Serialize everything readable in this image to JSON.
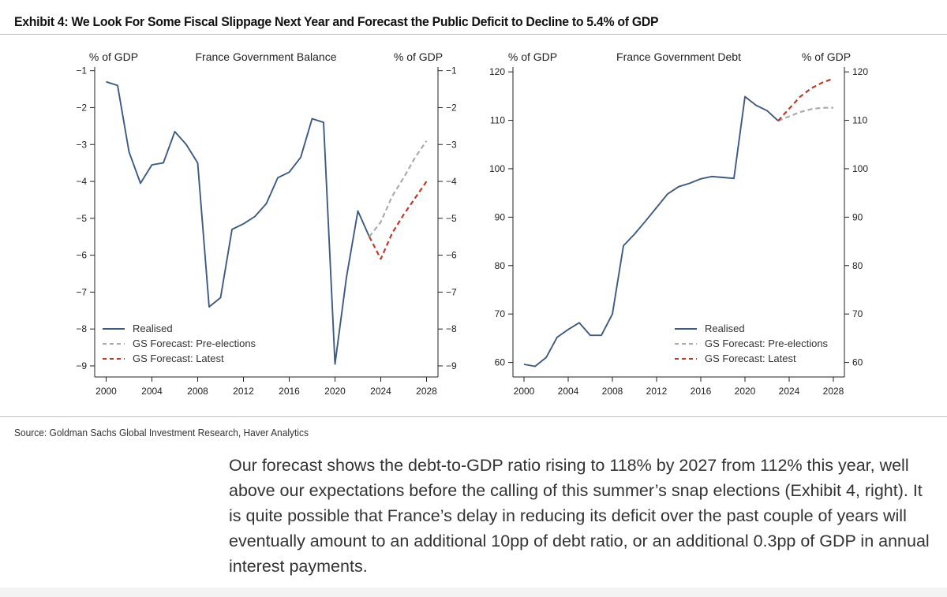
{
  "exhibit": {
    "title": "Exhibit 4: We Look For Some Fiscal Slippage Next Year and Forecast the Public Deficit to Decline to 5.4% of GDP",
    "source": "Source: Goldman Sachs Global Investment Research, Haver Analytics"
  },
  "colors": {
    "realised": "#3d5a80",
    "pre_elections": "#ababab",
    "latest": "#c0392b",
    "axis": "#222222"
  },
  "paragraph": "Our forecast shows the debt-to-GDP ratio rising to 118% by 2027 from 112% this year, well above our expectations before the calling of this summer’s snap elections (Exhibit 4, right). It is quite possible that France’s delay in reducing its deficit over the past couple of years will eventually amount to an additional 10pp of debt ratio, or an additional 0.3pp of GDP in annual interest payments.",
  "chart_data": [
    {
      "type": "line",
      "title": "France Government Balance",
      "ylabel_left": "% of GDP",
      "ylabel_right": "% of GDP",
      "xlim": [
        1999,
        2029
      ],
      "ylim": [
        -9.3,
        -0.9
      ],
      "xticks": [
        2000,
        2004,
        2008,
        2012,
        2016,
        2020,
        2024,
        2028
      ],
      "yticks": [
        -1,
        -2,
        -3,
        -4,
        -5,
        -6,
        -7,
        -8,
        -9
      ],
      "legend_position": "bottom-left",
      "series": [
        {
          "name": "Realised",
          "style": "solid",
          "x": [
            2000,
            2001,
            2002,
            2003,
            2004,
            2005,
            2006,
            2007,
            2008,
            2009,
            2010,
            2011,
            2012,
            2013,
            2014,
            2015,
            2016,
            2017,
            2018,
            2019,
            2020,
            2021,
            2022,
            2023
          ],
          "values": [
            -1.3,
            -1.4,
            -3.2,
            -4.05,
            -3.55,
            -3.5,
            -2.65,
            -3.0,
            -3.5,
            -7.4,
            -7.15,
            -5.3,
            -5.15,
            -4.95,
            -4.6,
            -3.9,
            -3.75,
            -3.35,
            -2.3,
            -2.4,
            -8.95,
            -6.6,
            -4.8,
            -5.5
          ]
        },
        {
          "name": "GS Forecast: Pre-elections",
          "style": "dashed",
          "x": [
            2023,
            2024,
            2025,
            2026,
            2027,
            2028
          ],
          "values": [
            -5.5,
            -5.1,
            -4.4,
            -3.9,
            -3.35,
            -2.9
          ]
        },
        {
          "name": "GS Forecast: Latest",
          "style": "dashed",
          "x": [
            2023,
            2024,
            2025,
            2026,
            2027,
            2028
          ],
          "values": [
            -5.5,
            -6.1,
            -5.4,
            -4.9,
            -4.45,
            -4.0
          ]
        }
      ]
    },
    {
      "type": "line",
      "title": "France Government Debt",
      "ylabel_left": "% of GDP",
      "ylabel_right": "% of GDP",
      "xlim": [
        1999,
        2029
      ],
      "ylim": [
        57,
        121
      ],
      "xticks": [
        2000,
        2004,
        2008,
        2012,
        2016,
        2020,
        2024,
        2028
      ],
      "yticks": [
        120,
        110,
        100,
        90,
        80,
        70,
        60
      ],
      "legend_position": "bottom-right",
      "series": [
        {
          "name": "Realised",
          "style": "solid",
          "x": [
            2000,
            2001,
            2002,
            2003,
            2004,
            2005,
            2006,
            2007,
            2008,
            2009,
            2010,
            2011,
            2012,
            2013,
            2014,
            2015,
            2016,
            2017,
            2018,
            2019,
            2020,
            2021,
            2022,
            2023
          ],
          "values": [
            59.6,
            59.2,
            61.0,
            65.2,
            66.8,
            68.2,
            65.6,
            65.6,
            70.0,
            84.1,
            86.5,
            89.2,
            92.0,
            94.8,
            96.3,
            97.0,
            97.9,
            98.4,
            98.2,
            98.0,
            114.9,
            113.1,
            112.0,
            109.9
          ]
        },
        {
          "name": "GS Forecast: Pre-elections",
          "style": "dashed",
          "x": [
            2023,
            2024,
            2025,
            2026,
            2027,
            2028
          ],
          "values": [
            109.9,
            110.8,
            111.7,
            112.3,
            112.6,
            112.6
          ]
        },
        {
          "name": "GS Forecast: Latest",
          "style": "dashed",
          "x": [
            2023,
            2024,
            2025,
            2026,
            2027,
            2028
          ],
          "values": [
            109.9,
            112.4,
            114.9,
            116.6,
            117.8,
            118.6
          ]
        }
      ]
    }
  ]
}
